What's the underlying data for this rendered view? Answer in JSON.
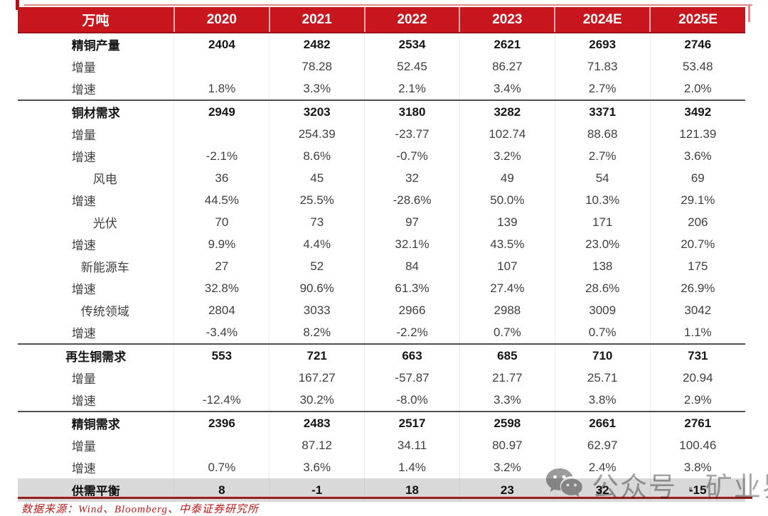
{
  "table": {
    "columns": [
      "万吨",
      "2020",
      "2021",
      "2022",
      "2023",
      "2024E",
      "2025E"
    ],
    "rows": [
      {
        "label": "精铜产量",
        "type": "section",
        "sep": false,
        "values": [
          "2404",
          "2482",
          "2534",
          "2621",
          "2693",
          "2746"
        ]
      },
      {
        "label": "增量",
        "type": "sub",
        "sep": false,
        "values": [
          "",
          "78.28",
          "52.45",
          "86.27",
          "71.83",
          "53.48"
        ]
      },
      {
        "label": "增速",
        "type": "sub",
        "sep": false,
        "values": [
          "1.8%",
          "3.3%",
          "2.1%",
          "3.4%",
          "2.7%",
          "2.0%"
        ]
      },
      {
        "label": "铜材需求",
        "type": "section",
        "sep": true,
        "values": [
          "2949",
          "3203",
          "3180",
          "3282",
          "3371",
          "3492"
        ]
      },
      {
        "label": "增量",
        "type": "sub",
        "sep": false,
        "values": [
          "",
          "254.39",
          "-23.77",
          "102.74",
          "88.68",
          "121.39"
        ]
      },
      {
        "label": "增速",
        "type": "sub",
        "sep": false,
        "values": [
          "-2.1%",
          "8.6%",
          "-0.7%",
          "3.2%",
          "2.7%",
          "3.6%"
        ]
      },
      {
        "label": "风电",
        "type": "detail",
        "sep": false,
        "values": [
          "36",
          "45",
          "32",
          "49",
          "54",
          "69"
        ]
      },
      {
        "label": "增速",
        "type": "sub",
        "sep": false,
        "values": [
          "44.5%",
          "25.5%",
          "-28.6%",
          "50.0%",
          "10.3%",
          "29.1%"
        ]
      },
      {
        "label": "光伏",
        "type": "detail",
        "sep": false,
        "values": [
          "70",
          "73",
          "97",
          "139",
          "171",
          "206"
        ]
      },
      {
        "label": "增速",
        "type": "sub",
        "sep": false,
        "values": [
          "9.9%",
          "4.4%",
          "32.1%",
          "43.5%",
          "23.0%",
          "20.7%"
        ]
      },
      {
        "label": "新能源车",
        "type": "detail",
        "sep": false,
        "values": [
          "27",
          "52",
          "84",
          "107",
          "138",
          "175"
        ]
      },
      {
        "label": "增速",
        "type": "sub",
        "sep": false,
        "values": [
          "32.8%",
          "90.6%",
          "61.3%",
          "27.4%",
          "28.6%",
          "26.9%"
        ]
      },
      {
        "label": "传统领域",
        "type": "detail",
        "sep": false,
        "values": [
          "2804",
          "3033",
          "2966",
          "2988",
          "3009",
          "3042"
        ]
      },
      {
        "label": "增速",
        "type": "sub",
        "sep": false,
        "values": [
          "-3.4%",
          "8.2%",
          "-2.2%",
          "0.7%",
          "0.7%",
          "1.1%"
        ]
      },
      {
        "label": "再生铜需求",
        "type": "section",
        "sep": true,
        "values": [
          "553",
          "721",
          "663",
          "685",
          "710",
          "731"
        ]
      },
      {
        "label": "增量",
        "type": "sub",
        "sep": false,
        "values": [
          "",
          "167.27",
          "-57.87",
          "21.77",
          "25.71",
          "20.94"
        ]
      },
      {
        "label": "增速",
        "type": "sub",
        "sep": false,
        "values": [
          "-12.4%",
          "30.2%",
          "-8.0%",
          "3.3%",
          "3.8%",
          "2.9%"
        ]
      },
      {
        "label": "精铜需求",
        "type": "section",
        "sep": true,
        "values": [
          "2396",
          "2483",
          "2517",
          "2598",
          "2661",
          "2761"
        ]
      },
      {
        "label": "增量",
        "type": "sub",
        "sep": false,
        "values": [
          "",
          "87.12",
          "34.11",
          "80.97",
          "62.97",
          "100.46"
        ]
      },
      {
        "label": "增速",
        "type": "sub",
        "sep": false,
        "values": [
          "0.7%",
          "3.6%",
          "1.4%",
          "3.2%",
          "2.4%",
          "3.8%"
        ]
      },
      {
        "label": "供需平衡",
        "type": "balance",
        "sep": false,
        "values": [
          "8",
          "-1",
          "18",
          "23",
          "32",
          "-15"
        ]
      }
    ]
  },
  "footer": {
    "text": "数据来源：Wind、Bloomberg、中泰证券研究所"
  },
  "watermark": {
    "text": "公众号 · 矿业界",
    "icon": "wechat-icon"
  },
  "colors": {
    "header_red": "#C8161E",
    "balance_row_bg": "#D9D9D9",
    "footer_red": "#BF1B1B",
    "separator_dark": "#4F4F4F",
    "bottom_line_dark": "#8F2220",
    "watermark_gray": "#A6A6A6"
  }
}
